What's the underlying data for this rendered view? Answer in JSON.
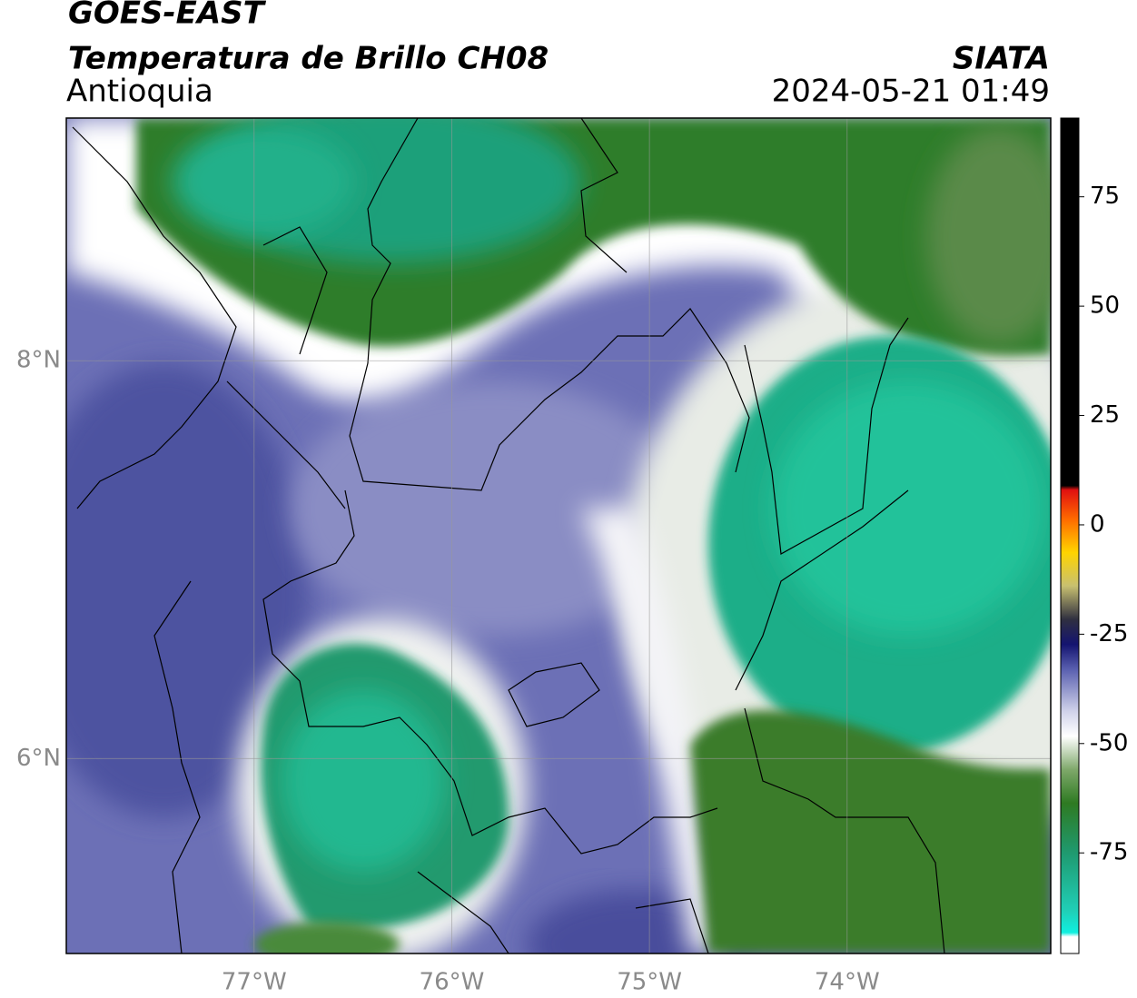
{
  "chart_data": {
    "type": "map",
    "title": "GOES-EAST",
    "subtitle": "Temperatura de Brillo CH08",
    "region": "Antioquia",
    "source": "SIATA",
    "datetime": "2024-05-21 01:49",
    "xlim": [
      -77.95,
      -72.97
    ],
    "ylim": [
      5.02,
      9.22
    ],
    "xticks": [
      {
        "value": -77,
        "label": "77°W"
      },
      {
        "value": -76,
        "label": "76°W"
      },
      {
        "value": -75,
        "label": "75°W"
      },
      {
        "value": -74,
        "label": "74°W"
      }
    ],
    "yticks": [
      {
        "value": 6,
        "label": "6°N"
      },
      {
        "value": 8,
        "label": "8°N"
      }
    ],
    "grid": true,
    "colorbar": {
      "lim": [
        -98,
        93
      ],
      "ticks": [
        -75,
        -50,
        -25,
        0,
        25,
        50,
        75
      ]
    }
  }
}
